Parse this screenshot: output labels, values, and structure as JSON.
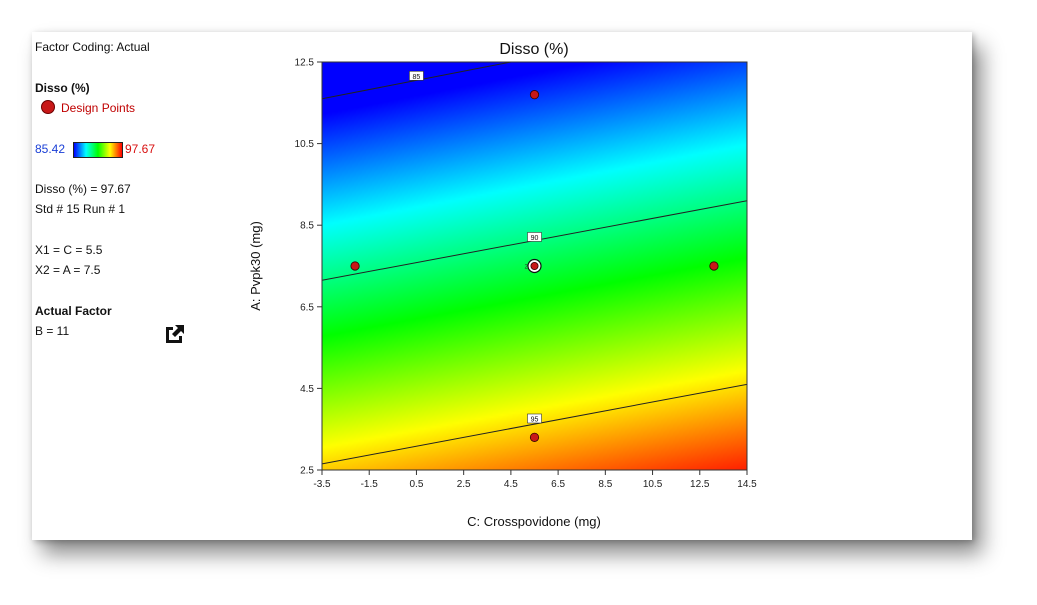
{
  "panel": {
    "factor_coding": "Factor Coding: Actual",
    "response_title": "Disso (%)",
    "design_points_label": "Design Points",
    "min_value": "85.42",
    "max_value": "97.67",
    "point_value": "Disso (%) = 97.67",
    "std_run": "Std # 15 Run # 1",
    "x1": "X1 = C = 5.5",
    "x2": "X2 = A = 7.5",
    "actual_factor_title": "Actual Factor",
    "actual_factor_value": "B = 11",
    "export_icon": "export-icon"
  },
  "colors": {
    "low": "#0000ff",
    "mid_low": "#00ffff",
    "mid": "#00ff00",
    "mid_high": "#ffff00",
    "high": "#ff0000",
    "design_point": "#c81818"
  },
  "chart_data": {
    "type": "contour",
    "title": "Disso (%)",
    "xlabel": "C: Crosspovidone (mg)",
    "ylabel": "A: Pvpk30 (mg)",
    "xlim": [
      -3.5,
      14.5
    ],
    "ylim": [
      2.5,
      12.5
    ],
    "x_ticks": [
      "-3.5",
      "-1.5",
      "0.5",
      "2.5",
      "4.5",
      "6.5",
      "8.5",
      "10.5",
      "12.5",
      "14.5"
    ],
    "y_ticks": [
      "2.5",
      "4.5",
      "6.5",
      "8.5",
      "10.5",
      "12.5"
    ],
    "contours": [
      {
        "level": "85",
        "from": [
          -3.5,
          11.6
        ],
        "to": [
          4.5,
          12.5
        ],
        "label_at": [
          0.5,
          12.15
        ]
      },
      {
        "level": "90",
        "from": [
          -3.5,
          7.15
        ],
        "to": [
          14.5,
          9.1
        ],
        "label_at": [
          5.5,
          8.2
        ]
      },
      {
        "level": "95",
        "from": [
          -3.5,
          2.65
        ],
        "to": [
          14.5,
          4.6
        ],
        "label_at": [
          5.5,
          3.75
        ]
      }
    ],
    "design_points": [
      {
        "x": 5.5,
        "y": 11.7
      },
      {
        "x": -2.1,
        "y": 7.5
      },
      {
        "x": 5.5,
        "y": 7.5,
        "selected": true,
        "count": "2"
      },
      {
        "x": 13.1,
        "y": 7.5
      },
      {
        "x": 5.5,
        "y": 3.3
      }
    ],
    "color_range": [
      85.42,
      97.67
    ]
  }
}
